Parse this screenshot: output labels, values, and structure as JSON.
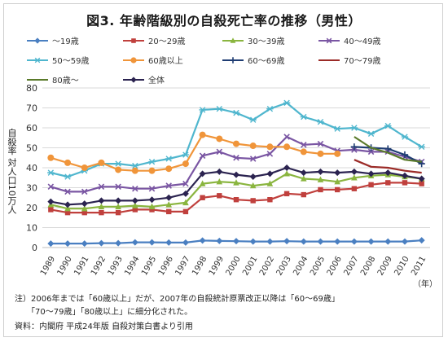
{
  "chart_data": {
    "type": "line",
    "title": "図3. 年齢階級別の自殺死亡率の推移（男性）",
    "ylabel": "自殺率 対人口10万人",
    "xlabel": "（年）",
    "ylim": [
      0,
      80
    ],
    "yticks": [
      0,
      10,
      20,
      30,
      40,
      50,
      60,
      70,
      80
    ],
    "grid": true,
    "legend_position": "top",
    "x": [
      1989,
      1990,
      1991,
      1992,
      1993,
      1994,
      1995,
      1996,
      1997,
      1998,
      1999,
      2000,
      2001,
      2002,
      2003,
      2004,
      2005,
      2006,
      2007,
      2008,
      2009,
      2010,
      2011
    ],
    "series": [
      {
        "name": "〜19歳",
        "color": "#4a7fc1",
        "marker": "diamond",
        "values": [
          2.0,
          2.0,
          2.0,
          2.2,
          2.2,
          2.6,
          2.6,
          2.5,
          2.5,
          3.5,
          3.3,
          3.2,
          3.0,
          3.0,
          3.2,
          3.0,
          3.0,
          3.0,
          3.0,
          3.0,
          3.0,
          3.0,
          3.6
        ]
      },
      {
        "name": "20〜29歳",
        "color": "#c0403d",
        "marker": "square",
        "values": [
          19,
          17.5,
          17.5,
          17.5,
          17.5,
          19,
          19,
          18,
          18,
          25,
          26,
          24,
          23.5,
          24,
          27,
          26.5,
          29,
          29,
          29.5,
          31.5,
          32.5,
          32.5,
          32
        ]
      },
      {
        "name": "30〜39歳",
        "color": "#8ab53f",
        "marker": "triangle",
        "values": [
          21.5,
          19.5,
          19.5,
          20.5,
          20.5,
          21,
          20.5,
          21.5,
          22.5,
          32,
          33,
          32.5,
          31,
          32,
          37,
          34.5,
          34,
          33,
          35,
          36,
          36.5,
          35.5,
          34.5
        ]
      },
      {
        "name": "40〜49歳",
        "color": "#7a56a3",
        "marker": "x",
        "values": [
          30.5,
          28,
          28,
          30.5,
          30.5,
          29.5,
          29.5,
          31,
          32,
          46,
          48,
          45,
          44.5,
          47,
          55.5,
          51.5,
          52,
          48.5,
          49,
          48,
          48,
          45.5,
          43
        ]
      },
      {
        "name": "50〜59歳",
        "color": "#4fb6ce",
        "marker": "star",
        "values": [
          37.5,
          35.5,
          38.5,
          42,
          42,
          41,
          43,
          44.5,
          46.5,
          69,
          69.5,
          67.5,
          64,
          69.5,
          72.5,
          65.5,
          63,
          59.5,
          60,
          57,
          61,
          55.5,
          50.5
        ]
      },
      {
        "name": "60歳以上",
        "color": "#f0953a",
        "marker": "circle",
        "values": [
          45,
          42.5,
          40,
          42.5,
          39,
          38.5,
          38.5,
          39.5,
          42,
          56.5,
          54.5,
          52,
          51,
          50.5,
          50.5,
          48,
          47,
          47,
          null,
          null,
          null,
          null,
          null
        ]
      },
      {
        "name": "60〜69歳",
        "color": "#1f3d73",
        "marker": "plus",
        "values": [
          null,
          null,
          null,
          null,
          null,
          null,
          null,
          null,
          null,
          null,
          null,
          null,
          null,
          null,
          null,
          null,
          null,
          null,
          50.5,
          50,
          49.5,
          46.5,
          42
        ]
      },
      {
        "name": "70〜79歳",
        "color": "#9b2b27",
        "marker": "none",
        "values": [
          null,
          null,
          null,
          null,
          null,
          null,
          null,
          null,
          null,
          null,
          null,
          null,
          null,
          null,
          null,
          null,
          null,
          null,
          44,
          40.5,
          40,
          38.5,
          37.5
        ]
      },
      {
        "name": "80歳〜",
        "color": "#5a7a2a",
        "marker": "none",
        "values": [
          null,
          null,
          null,
          null,
          null,
          null,
          null,
          null,
          null,
          null,
          null,
          null,
          null,
          null,
          null,
          null,
          null,
          null,
          55.5,
          50,
          47.5,
          44,
          43
        ]
      },
      {
        "name": "全体",
        "color": "#2b2350",
        "marker": "diamond",
        "values": [
          23,
          21.5,
          22,
          23.5,
          23.5,
          23.5,
          24,
          25,
          27,
          37,
          38,
          36.5,
          35.5,
          37,
          40,
          37.5,
          38,
          37.5,
          38,
          37,
          37.5,
          36,
          34.5
        ]
      }
    ]
  },
  "notes": {
    "line1": "注）2006年までは「60歳以上」だが、2007年の自殺統計原票改正以降は「60〜69歳」",
    "line2": "　　「70〜79歳」「80歳以上」に細分化された。",
    "line3": "資料：内閣府 平成24年版 自殺対策白書より引用"
  }
}
